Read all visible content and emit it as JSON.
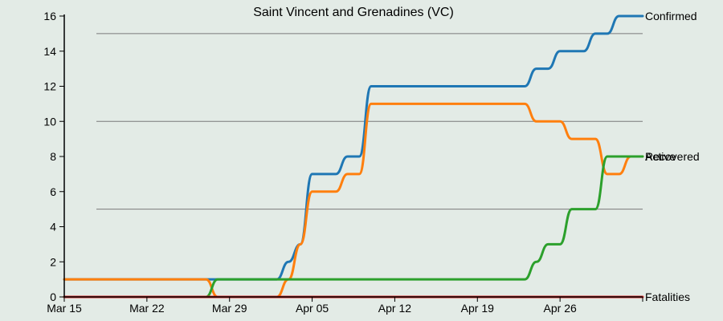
{
  "chart_data": {
    "type": "line",
    "title": "Saint Vincent and Grenadines (VC)",
    "xlabel": "",
    "ylabel": "",
    "x_start": "Mar 15",
    "x_end": "May 2",
    "x_ticks": [
      "Mar 15",
      "Mar 22",
      "Mar 29",
      "Apr 05",
      "Apr 12",
      "Apr 19",
      "Apr 26"
    ],
    "ylim": [
      0,
      16
    ],
    "y_ticks": [
      0,
      2,
      4,
      6,
      8,
      10,
      12,
      14,
      16
    ],
    "grid_y": [
      5,
      10,
      15
    ],
    "legend": "line end labels",
    "series": [
      {
        "name": "Confirmed",
        "color": "#1f77b4",
        "values": [
          1,
          1,
          1,
          1,
          1,
          1,
          1,
          1,
          1,
          1,
          1,
          1,
          1,
          1,
          1,
          1,
          1,
          1,
          1,
          2,
          3,
          7,
          7,
          7,
          8,
          8,
          12,
          12,
          12,
          12,
          12,
          12,
          12,
          12,
          12,
          12,
          12,
          12,
          12,
          12,
          13,
          13,
          14,
          14,
          14,
          15,
          15,
          16,
          16,
          16
        ]
      },
      {
        "name": "Active",
        "color": "#ff7f0e",
        "values": [
          1,
          1,
          1,
          1,
          1,
          1,
          1,
          1,
          1,
          1,
          1,
          1,
          1,
          0,
          0,
          0,
          0,
          0,
          0,
          1,
          3,
          6,
          6,
          6,
          7,
          7,
          11,
          11,
          11,
          11,
          11,
          11,
          11,
          11,
          11,
          11,
          11,
          11,
          11,
          11,
          10,
          10,
          10,
          9,
          9,
          9,
          7,
          7,
          8,
          8
        ]
      },
      {
        "name": "Recovered",
        "color": "#2ca02c",
        "values": [
          0,
          0,
          0,
          0,
          0,
          0,
          0,
          0,
          0,
          0,
          0,
          0,
          0,
          1,
          1,
          1,
          1,
          1,
          1,
          1,
          1,
          1,
          1,
          1,
          1,
          1,
          1,
          1,
          1,
          1,
          1,
          1,
          1,
          1,
          1,
          1,
          1,
          1,
          1,
          1,
          2,
          3,
          3,
          5,
          5,
          5,
          8,
          8,
          8,
          8
        ]
      },
      {
        "name": "Fatalities",
        "color": "#d62728",
        "values": [
          0,
          0,
          0,
          0,
          0,
          0,
          0,
          0,
          0,
          0,
          0,
          0,
          0,
          0,
          0,
          0,
          0,
          0,
          0,
          0,
          0,
          0,
          0,
          0,
          0,
          0,
          0,
          0,
          0,
          0,
          0,
          0,
          0,
          0,
          0,
          0,
          0,
          0,
          0,
          0,
          0,
          0,
          0,
          0,
          0,
          0,
          0,
          0,
          0,
          0
        ]
      }
    ]
  }
}
